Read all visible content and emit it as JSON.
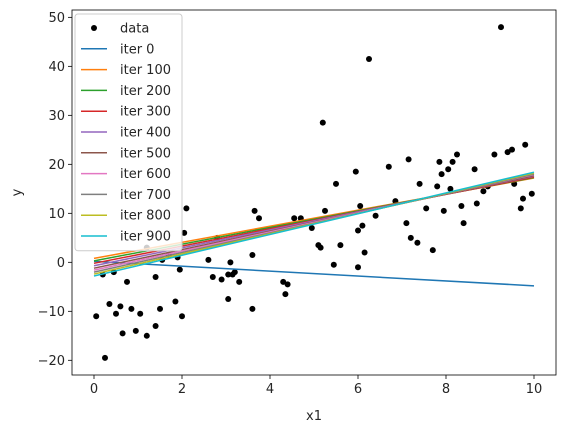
{
  "chart_data": {
    "type": "scatter",
    "xlabel": "x1",
    "ylabel": "y",
    "xlim": [
      -0.5,
      10.5
    ],
    "ylim": [
      -23,
      51.5
    ],
    "xticks": [
      0,
      2,
      4,
      6,
      8,
      10
    ],
    "yticks": [
      -20,
      -10,
      0,
      10,
      20,
      30,
      40,
      50
    ],
    "grid": false,
    "legend_position": "upper-left",
    "scatter": {
      "name": "data",
      "color": "#000000",
      "points": [
        [
          0.05,
          -11
        ],
        [
          0.2,
          -2.5
        ],
        [
          0.25,
          -19.5
        ],
        [
          0.35,
          -8.5
        ],
        [
          0.45,
          -2
        ],
        [
          0.5,
          -10.5
        ],
        [
          0.6,
          -9
        ],
        [
          0.65,
          -14.5
        ],
        [
          0.75,
          -4
        ],
        [
          0.85,
          -9.5
        ],
        [
          0.95,
          -14
        ],
        [
          1.05,
          -10.5
        ],
        [
          1.2,
          -15
        ],
        [
          1.2,
          3
        ],
        [
          1.4,
          -13
        ],
        [
          1.4,
          -3
        ],
        [
          1.5,
          -9.5
        ],
        [
          1.55,
          0.5
        ],
        [
          1.7,
          1.5
        ],
        [
          1.85,
          -8
        ],
        [
          1.9,
          1
        ],
        [
          1.95,
          -1.5
        ],
        [
          2.0,
          -11
        ],
        [
          2.05,
          6
        ],
        [
          2.1,
          11
        ],
        [
          2.6,
          0.5
        ],
        [
          2.7,
          -3
        ],
        [
          2.8,
          5
        ],
        [
          2.9,
          -3.5
        ],
        [
          3.05,
          -7.5
        ],
        [
          3.05,
          -2.5
        ],
        [
          3.1,
          0
        ],
        [
          3.15,
          -2.5
        ],
        [
          3.2,
          -2
        ],
        [
          3.3,
          -4
        ],
        [
          3.6,
          1.5
        ],
        [
          3.6,
          -9.5
        ],
        [
          3.65,
          10.5
        ],
        [
          3.75,
          9
        ],
        [
          4.3,
          -4
        ],
        [
          4.35,
          -6.5
        ],
        [
          4.4,
          -4.5
        ],
        [
          4.55,
          9
        ],
        [
          4.7,
          9
        ],
        [
          4.95,
          7
        ],
        [
          5.1,
          3.5
        ],
        [
          5.15,
          3
        ],
        [
          5.2,
          28.5
        ],
        [
          5.25,
          10.5
        ],
        [
          5.45,
          -0.5
        ],
        [
          5.5,
          16
        ],
        [
          5.6,
          3.5
        ],
        [
          5.95,
          18.5
        ],
        [
          6.0,
          6.5
        ],
        [
          6.0,
          -1
        ],
        [
          6.05,
          11.5
        ],
        [
          6.1,
          7.5
        ],
        [
          6.15,
          2
        ],
        [
          6.25,
          41.5
        ],
        [
          6.4,
          9.5
        ],
        [
          6.7,
          19.5
        ],
        [
          6.85,
          12.5
        ],
        [
          7.1,
          8
        ],
        [
          7.15,
          21
        ],
        [
          7.2,
          5
        ],
        [
          7.35,
          4
        ],
        [
          7.4,
          16
        ],
        [
          7.55,
          11
        ],
        [
          7.7,
          2.5
        ],
        [
          7.8,
          15.5
        ],
        [
          7.85,
          20.5
        ],
        [
          7.9,
          18
        ],
        [
          7.95,
          10.5
        ],
        [
          8.05,
          19
        ],
        [
          8.1,
          15
        ],
        [
          8.15,
          20.5
        ],
        [
          8.25,
          22
        ],
        [
          8.35,
          11.5
        ],
        [
          8.4,
          8
        ],
        [
          8.65,
          19
        ],
        [
          8.7,
          12
        ],
        [
          8.85,
          14.5
        ],
        [
          8.95,
          15.5
        ],
        [
          9.1,
          22
        ],
        [
          9.25,
          48
        ],
        [
          9.4,
          22.5
        ],
        [
          9.5,
          23
        ],
        [
          9.55,
          16
        ],
        [
          9.7,
          11
        ],
        [
          9.75,
          13
        ],
        [
          9.8,
          24
        ],
        [
          9.95,
          14
        ]
      ]
    },
    "lines": [
      {
        "name": "iter 0",
        "color": "#1f77b4",
        "y0": 0.2,
        "y1": -4.8
      },
      {
        "name": "iter 100",
        "color": "#ff7f0e",
        "y0": 0.8,
        "y1": 17.2
      },
      {
        "name": "iter 200",
        "color": "#2ca02c",
        "y0": 0.3,
        "y1": 17.3
      },
      {
        "name": "iter 300",
        "color": "#d62728",
        "y0": -0.2,
        "y1": 17.4
      },
      {
        "name": "iter 400",
        "color": "#9467bd",
        "y0": -0.7,
        "y1": 17.6
      },
      {
        "name": "iter 500",
        "color": "#8c564b",
        "y0": -1.2,
        "y1": 17.7
      },
      {
        "name": "iter 600",
        "color": "#e377c2",
        "y0": -1.6,
        "y1": 17.9
      },
      {
        "name": "iter 700",
        "color": "#7f7f7f",
        "y0": -2.0,
        "y1": 18.0
      },
      {
        "name": "iter 800",
        "color": "#bcbd22",
        "y0": -2.4,
        "y1": 18.2
      },
      {
        "name": "iter 900",
        "color": "#17becf",
        "y0": -2.8,
        "y1": 18.4
      }
    ],
    "line_x_range": [
      0,
      10
    ]
  }
}
